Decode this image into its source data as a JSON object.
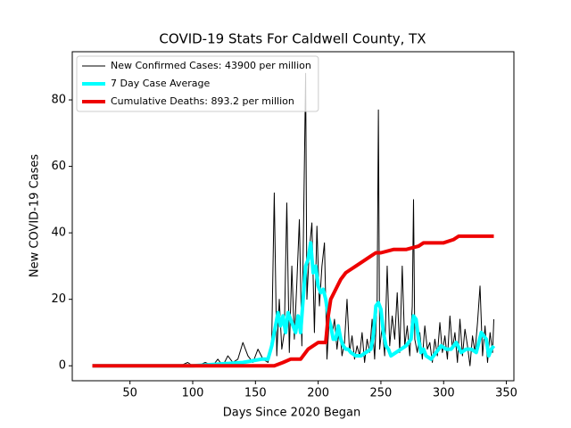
{
  "chart_data": {
    "type": "line",
    "title": "COVID-19 Stats For Caldwell County, TX",
    "x_label": "Days Since 2020 Began",
    "y_label": "New COVID-19 Cases",
    "xlim": [
      4,
      356
    ],
    "ylim": [
      -4.5,
      94.5
    ],
    "xticks": [
      50,
      100,
      150,
      200,
      250,
      300,
      350
    ],
    "yticks": [
      0,
      20,
      40,
      60,
      80
    ],
    "grid": false,
    "legend": "upper left",
    "series": [
      {
        "name": "New Confirmed Cases: 43900 per million",
        "color": "#000000",
        "width": 1,
        "x": [
          20,
          90,
          96,
          100,
          104,
          110,
          116,
          120,
          124,
          128,
          132,
          136,
          140,
          144,
          148,
          152,
          156,
          160,
          163,
          165,
          167,
          169,
          171,
          173,
          175,
          177,
          179,
          181,
          183,
          185,
          187,
          189,
          190,
          191,
          193,
          195,
          197,
          199,
          201,
          203,
          205,
          207,
          209,
          211,
          213,
          215,
          217,
          219,
          221,
          223,
          225,
          227,
          229,
          231,
          233,
          235,
          237,
          239,
          241,
          243,
          245,
          247,
          248,
          249,
          251,
          253,
          255,
          257,
          259,
          261,
          263,
          265,
          267,
          269,
          271,
          273,
          275,
          276,
          277,
          279,
          281,
          283,
          285,
          287,
          289,
          291,
          293,
          295,
          297,
          299,
          301,
          303,
          305,
          307,
          309,
          311,
          313,
          315,
          317,
          319,
          321,
          323,
          325,
          327,
          329,
          331,
          333,
          335,
          337,
          339,
          340
        ],
        "values": [
          0,
          0,
          1,
          0,
          0,
          1,
          0,
          2,
          0,
          3,
          1,
          2,
          7,
          3,
          1,
          5,
          2,
          1,
          8,
          52,
          3,
          20,
          5,
          10,
          49,
          4,
          30,
          8,
          25,
          44,
          6,
          60,
          88,
          20,
          35,
          43,
          10,
          42,
          18,
          30,
          37,
          2,
          15,
          9,
          14,
          5,
          12,
          3,
          7,
          20,
          4,
          9,
          2,
          6,
          3,
          10,
          1,
          8,
          4,
          14,
          2,
          20,
          77,
          5,
          12,
          3,
          30,
          6,
          15,
          8,
          22,
          4,
          30,
          6,
          12,
          3,
          18,
          50,
          8,
          4,
          10,
          2,
          12,
          5,
          7,
          1,
          8,
          3,
          13,
          4,
          9,
          2,
          15,
          5,
          10,
          1,
          14,
          3,
          11,
          6,
          0,
          9,
          4,
          13,
          24,
          3,
          12,
          1,
          10,
          4,
          14
        ]
      },
      {
        "name": "7 Day Case Average",
        "color": "#00ffff",
        "width": 4,
        "x": [
          20,
          100,
          120,
          140,
          155,
          160,
          163,
          166,
          168,
          170,
          172,
          174,
          176,
          178,
          180,
          182,
          184,
          186,
          188,
          190,
          192,
          194,
          196,
          198,
          200,
          202,
          204,
          206,
          208,
          210,
          212,
          214,
          216,
          218,
          220,
          222,
          224,
          226,
          230,
          234,
          238,
          242,
          244,
          246,
          248,
          250,
          252,
          254,
          256,
          258,
          262,
          266,
          270,
          272,
          274,
          276,
          278,
          280,
          282,
          284,
          286,
          290,
          294,
          298,
          302,
          306,
          310,
          314,
          318,
          322,
          326,
          330,
          334,
          336,
          338,
          340
        ],
        "values": [
          0,
          0,
          0.5,
          1,
          2,
          2,
          6,
          12,
          16,
          12,
          15,
          10,
          16,
          14,
          12,
          10,
          15,
          10,
          20,
          30,
          32,
          37,
          28,
          30,
          24,
          22,
          23,
          20,
          15,
          12,
          8,
          8,
          12,
          8,
          6,
          5,
          5,
          4,
          3,
          3,
          4,
          5,
          9,
          18,
          19,
          17,
          10,
          6,
          5,
          3,
          4,
          5,
          6,
          7,
          8,
          15,
          14,
          8,
          4,
          5,
          3,
          2,
          4,
          6,
          5,
          5,
          7,
          4,
          5,
          5,
          4,
          10,
          8,
          3,
          5,
          6
        ]
      },
      {
        "name": "Cumulative Deaths: 893.2 per million",
        "color": "#ee0000",
        "width": 4,
        "x": [
          20,
          165,
          172,
          178,
          186,
          192,
          200,
          206,
          208,
          210,
          214,
          218,
          222,
          226,
          230,
          234,
          238,
          242,
          246,
          250,
          260,
          270,
          280,
          284,
          290,
          300,
          308,
          312,
          320,
          330,
          340
        ],
        "values": [
          0,
          0,
          1,
          2,
          2,
          5,
          7,
          7,
          15,
          20,
          23,
          26,
          28,
          29,
          30,
          31,
          32,
          33,
          34,
          34,
          35,
          35,
          36,
          37,
          37,
          37,
          38,
          39,
          39,
          39,
          39
        ]
      }
    ]
  }
}
